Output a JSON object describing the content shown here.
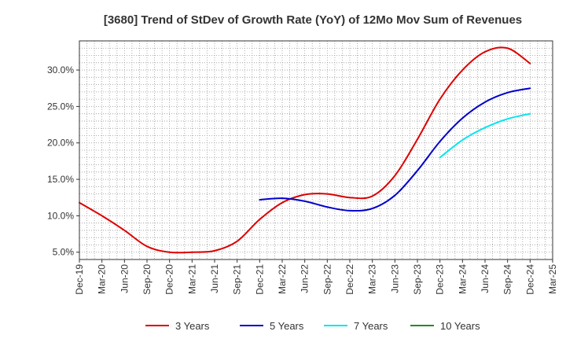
{
  "chart_data": {
    "type": "line",
    "title": "[3680]  Trend of StDev of Growth Rate (YoY) of 12Mo Mov Sum of Revenues",
    "xlabel": "",
    "ylabel": "",
    "categories": [
      "Dec-19",
      "Mar-20",
      "Jun-20",
      "Sep-20",
      "Dec-20",
      "Mar-21",
      "Jun-21",
      "Sep-21",
      "Dec-21",
      "Mar-22",
      "Jun-22",
      "Sep-22",
      "Dec-22",
      "Mar-23",
      "Jun-23",
      "Sep-23",
      "Dec-23",
      "Mar-24",
      "Jun-24",
      "Sep-24",
      "Dec-24",
      "Mar-25"
    ],
    "y_ticks": [
      5.0,
      10.0,
      15.0,
      20.0,
      25.0,
      30.0
    ],
    "y_tick_labels": [
      "5.0%",
      "10.0%",
      "15.0%",
      "20.0%",
      "25.0%",
      "30.0%"
    ],
    "ylim": [
      4.0,
      34.0
    ],
    "grid": true,
    "legend_position": "bottom",
    "series": [
      {
        "name": "3 Years",
        "color": "#dd0000",
        "values": [
          11.8,
          10.0,
          8.0,
          5.8,
          5.0,
          5.0,
          5.2,
          6.5,
          9.5,
          11.8,
          12.9,
          13.0,
          12.5,
          12.7,
          15.5,
          20.5,
          26.0,
          30.0,
          32.5,
          33.0,
          30.9,
          null
        ]
      },
      {
        "name": "5 Years",
        "color": "#0000cc",
        "values": [
          null,
          null,
          null,
          null,
          null,
          null,
          null,
          null,
          12.2,
          12.4,
          12.0,
          11.2,
          10.7,
          11.0,
          12.8,
          16.2,
          20.2,
          23.4,
          25.6,
          26.9,
          27.5,
          null
        ]
      },
      {
        "name": "7 Years",
        "color": "#00e5ee",
        "values": [
          null,
          null,
          null,
          null,
          null,
          null,
          null,
          null,
          null,
          null,
          null,
          null,
          null,
          null,
          null,
          null,
          18.0,
          20.4,
          22.1,
          23.3,
          24.0,
          null
        ]
      },
      {
        "name": "10 Years",
        "color": "#228b22",
        "values": [
          null,
          null,
          null,
          null,
          null,
          null,
          null,
          null,
          null,
          null,
          null,
          null,
          null,
          null,
          null,
          null,
          null,
          null,
          null,
          null,
          null,
          null
        ]
      }
    ]
  }
}
